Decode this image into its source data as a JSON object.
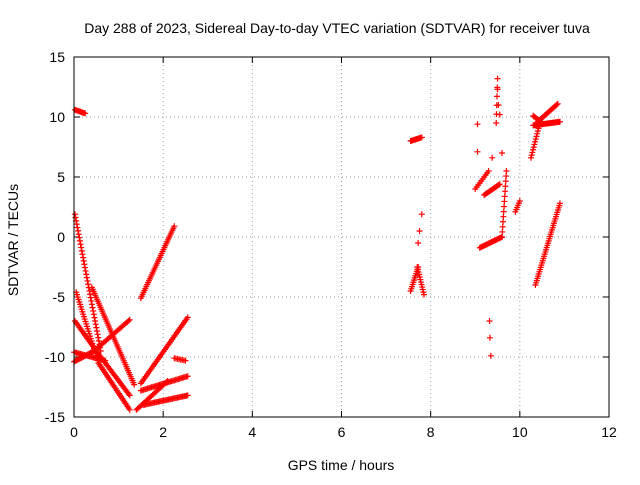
{
  "chart_data": {
    "type": "scatter",
    "title": "Day 288 of 2023, Sidereal Day-to-day VTEC variation (SDTVAR) for receiver tuva",
    "xlabel": "GPS time / hours",
    "ylabel": "SDTVAR / TECUs",
    "xlim": [
      0,
      12
    ],
    "ylim": [
      -15,
      15
    ],
    "xticks": [
      0,
      2,
      4,
      6,
      8,
      10,
      12
    ],
    "yticks": [
      -15,
      -10,
      -5,
      0,
      5,
      10,
      15
    ],
    "xtick_labels": [
      "0",
      "2",
      "4",
      "6",
      "8",
      "10",
      "12"
    ],
    "ytick_labels": [
      "-15",
      "-10",
      "-5",
      "0",
      "5",
      "10",
      "15"
    ],
    "grid": true,
    "marker": "+",
    "series_color": "#ff0000",
    "tracks": [
      {
        "x": [
          0.02,
          0.25
        ],
        "y": [
          10.6,
          10.3
        ],
        "n": 10
      },
      {
        "x": [
          0.02,
          0.6
        ],
        "y": [
          1.9,
          -9.5
        ],
        "n": 42
      },
      {
        "x": [
          0.05,
          0.55
        ],
        "y": [
          -4.6,
          -10.5
        ],
        "n": 30
      },
      {
        "x": [
          0.55,
          1.25
        ],
        "y": [
          -10.5,
          -14.4
        ],
        "n": 30
      },
      {
        "x": [
          0.4,
          1.35
        ],
        "y": [
          -4.2,
          -12.3
        ],
        "n": 50
      },
      {
        "x": [
          0.0,
          0.7
        ],
        "y": [
          -9.6,
          -10.3
        ],
        "n": 25
      },
      {
        "x": [
          0.02,
          0.5
        ],
        "y": [
          -7.0,
          -9.5
        ],
        "n": 20
      },
      {
        "x": [
          0.5,
          1.25
        ],
        "y": [
          -9.5,
          -13.2
        ],
        "n": 32
      },
      {
        "x": [
          0.0,
          0.45
        ],
        "y": [
          -10.4,
          -9.5
        ],
        "n": 18
      },
      {
        "x": [
          0.45,
          1.25
        ],
        "y": [
          -9.5,
          -6.9
        ],
        "n": 30
      },
      {
        "x": [
          1.5,
          2.25
        ],
        "y": [
          -5.1,
          0.9
        ],
        "n": 38
      },
      {
        "x": [
          1.4,
          2.1
        ],
        "y": [
          -14.4,
          -12.0
        ],
        "n": 26
      },
      {
        "x": [
          1.5,
          2.55
        ],
        "y": [
          -12.2,
          -6.7
        ],
        "n": 40
      },
      {
        "x": [
          1.55,
          2.55
        ],
        "y": [
          -14.0,
          -13.2
        ],
        "n": 36
      },
      {
        "x": [
          1.5,
          2.55
        ],
        "y": [
          -12.8,
          -11.6
        ],
        "n": 36
      },
      {
        "x": [
          2.25,
          2.5
        ],
        "y": [
          -10.1,
          -10.3
        ],
        "n": 8
      },
      {
        "x": [
          7.55,
          7.8
        ],
        "y": [
          8.0,
          8.3
        ],
        "n": 12
      },
      {
        "x": [
          7.55,
          7.72
        ],
        "y": [
          -4.5,
          -2.5
        ],
        "n": 12
      },
      {
        "x": [
          7.7,
          7.85
        ],
        "y": [
          -2.5,
          -4.8
        ],
        "n": 12
      },
      {
        "x": [
          9.0,
          9.3
        ],
        "y": [
          4.0,
          5.5
        ],
        "n": 10
      },
      {
        "x": [
          9.1,
          9.6
        ],
        "y": [
          -0.9,
          0.0
        ],
        "n": 22
      },
      {
        "x": [
          9.6,
          9.7
        ],
        "y": [
          0.0,
          5.5
        ],
        "n": 14
      },
      {
        "x": [
          9.2,
          9.55
        ],
        "y": [
          3.5,
          4.4
        ],
        "n": 16
      },
      {
        "x": [
          9.47,
          9.5
        ],
        "y": [
          9.5,
          13.2
        ],
        "n": 6
      },
      {
        "x": [
          9.9,
          10.0
        ],
        "y": [
          2.1,
          3.0
        ],
        "n": 6
      },
      {
        "x": [
          10.25,
          10.45
        ],
        "y": [
          6.6,
          9.5
        ],
        "n": 14
      },
      {
        "x": [
          10.3,
          10.9
        ],
        "y": [
          9.3,
          9.6
        ],
        "n": 30
      },
      {
        "x": [
          10.4,
          10.85
        ],
        "y": [
          9.6,
          11.1
        ],
        "n": 20
      },
      {
        "x": [
          10.3,
          10.5
        ],
        "y": [
          10.1,
          9.5
        ],
        "n": 10
      },
      {
        "x": [
          10.35,
          10.9
        ],
        "y": [
          -4.0,
          2.8
        ],
        "n": 38
      }
    ],
    "scatter_points": [
      {
        "x": 7.8,
        "y": 1.9
      },
      {
        "x": 7.75,
        "y": 0.5
      },
      {
        "x": 7.72,
        "y": -0.5
      },
      {
        "x": 9.05,
        "y": 9.4
      },
      {
        "x": 9.05,
        "y": 7.1
      },
      {
        "x": 9.38,
        "y": 6.6
      },
      {
        "x": 9.32,
        "y": -7.0
      },
      {
        "x": 9.33,
        "y": -8.4
      },
      {
        "x": 9.35,
        "y": -9.9
      },
      {
        "x": 9.5,
        "y": 12.3
      },
      {
        "x": 9.52,
        "y": 11.0
      },
      {
        "x": 9.55,
        "y": 10.2
      },
      {
        "x": 9.6,
        "y": 7.0
      }
    ]
  }
}
